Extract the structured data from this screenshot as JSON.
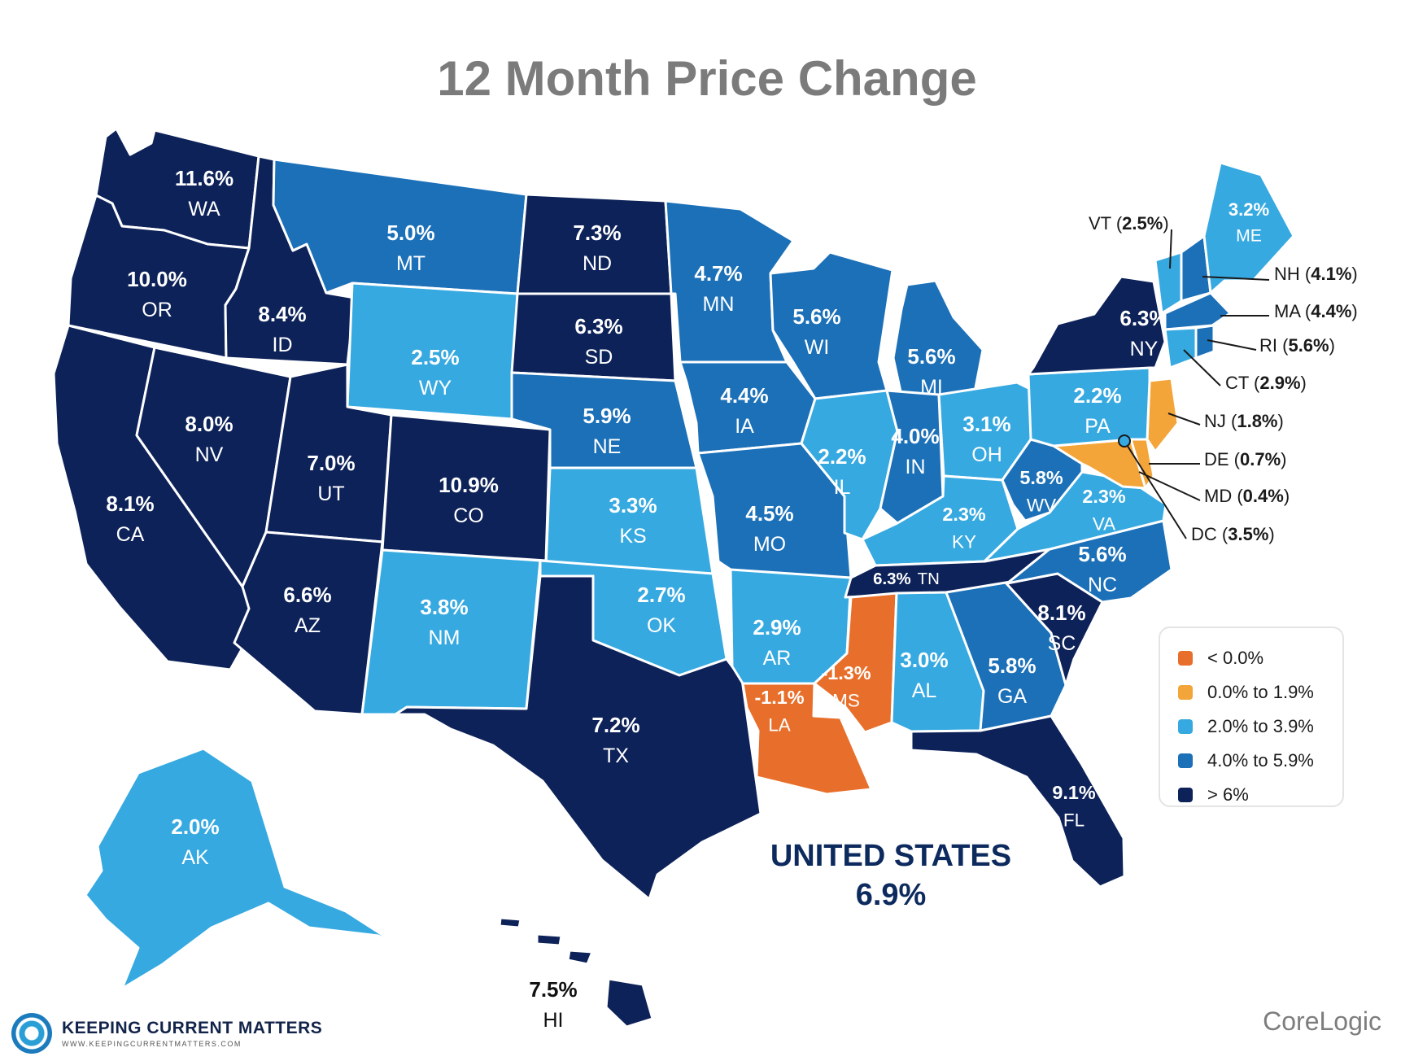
{
  "title": "12 Month Price Change",
  "colors": {
    "neg": "#e86f2b",
    "low": "#f4a53a",
    "mid": "#36a9e1",
    "high": "#1b70b8",
    "top": "#0d2259"
  },
  "legend": [
    {
      "label": "< 0.0%",
      "key": "neg"
    },
    {
      "label": "0.0% to 1.9%",
      "key": "low"
    },
    {
      "label": "2.0% to 3.9%",
      "key": "mid"
    },
    {
      "label": "4.0% to 5.9%",
      "key": "high"
    },
    {
      "label": "> 6%",
      "key": "top"
    }
  ],
  "states": [
    {
      "abbr": "WA",
      "value": "11.6%"
    },
    {
      "abbr": "OR",
      "value": "10.0%"
    },
    {
      "abbr": "CA",
      "value": "8.1%"
    },
    {
      "abbr": "ID",
      "value": "8.4%"
    },
    {
      "abbr": "NV",
      "value": "8.0%"
    },
    {
      "abbr": "MT",
      "value": "5.0%"
    },
    {
      "abbr": "WY",
      "value": "2.5%"
    },
    {
      "abbr": "UT",
      "value": "7.0%"
    },
    {
      "abbr": "AZ",
      "value": "6.6%"
    },
    {
      "abbr": "CO",
      "value": "10.9%"
    },
    {
      "abbr": "NM",
      "value": "3.8%"
    },
    {
      "abbr": "ND",
      "value": "7.3%"
    },
    {
      "abbr": "SD",
      "value": "6.3%"
    },
    {
      "abbr": "NE",
      "value": "5.9%"
    },
    {
      "abbr": "KS",
      "value": "3.3%"
    },
    {
      "abbr": "OK",
      "value": "2.7%"
    },
    {
      "abbr": "TX",
      "value": "7.2%"
    },
    {
      "abbr": "MN",
      "value": "4.7%"
    },
    {
      "abbr": "IA",
      "value": "4.4%"
    },
    {
      "abbr": "MO",
      "value": "4.5%"
    },
    {
      "abbr": "AR",
      "value": "2.9%"
    },
    {
      "abbr": "LA",
      "value": "-1.1%"
    },
    {
      "abbr": "WI",
      "value": "5.6%"
    },
    {
      "abbr": "IL",
      "value": "2.2%"
    },
    {
      "abbr": "MI",
      "value": "5.6%"
    },
    {
      "abbr": "IN",
      "value": "4.0%"
    },
    {
      "abbr": "OH",
      "value": "3.1%"
    },
    {
      "abbr": "KY",
      "value": "2.3%"
    },
    {
      "abbr": "TN",
      "value": "6.3%"
    },
    {
      "abbr": "MS",
      "value": "-1.3%"
    },
    {
      "abbr": "AL",
      "value": "3.0%"
    },
    {
      "abbr": "GA",
      "value": "5.8%"
    },
    {
      "abbr": "FL",
      "value": "9.1%"
    },
    {
      "abbr": "SC",
      "value": "8.1%"
    },
    {
      "abbr": "NC",
      "value": "5.6%"
    },
    {
      "abbr": "VA",
      "value": "2.3%"
    },
    {
      "abbr": "WV",
      "value": "5.8%"
    },
    {
      "abbr": "PA",
      "value": "2.2%"
    },
    {
      "abbr": "NY",
      "value": "6.3%"
    },
    {
      "abbr": "ME",
      "value": "3.2%"
    },
    {
      "abbr": "AK",
      "value": "2.0%"
    },
    {
      "abbr": "HI",
      "value": "7.5%"
    }
  ],
  "callouts": [
    {
      "abbr": "VT",
      "value": "2.5%"
    },
    {
      "abbr": "NH",
      "value": "4.1%"
    },
    {
      "abbr": "MA",
      "value": "4.4%"
    },
    {
      "abbr": "RI",
      "value": "5.6%"
    },
    {
      "abbr": "CT",
      "value": "2.9%"
    },
    {
      "abbr": "NJ",
      "value": "1.8%"
    },
    {
      "abbr": "DE",
      "value": "0.7%"
    },
    {
      "abbr": "MD",
      "value": "0.4%"
    },
    {
      "abbr": "DC",
      "value": "3.5%"
    }
  ],
  "national": {
    "label": "UNITED STATES",
    "value": "6.9%"
  },
  "brand": {
    "name": "KEEPING CURRENT MATTERS",
    "url": "WWW.KEEPINGCURRENTMATTERS.COM"
  },
  "source": "CoreLogic"
}
